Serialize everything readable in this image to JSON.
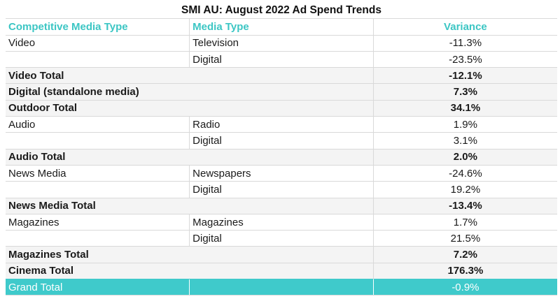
{
  "title": "SMI AU: August 2022 Ad Spend Trends",
  "headers": {
    "col1": "Competitive Media Type",
    "col2": "Media Type",
    "col3": "Variance"
  },
  "rows": [
    {
      "type": "detail",
      "col1": "Video",
      "col2": "Television",
      "col3": "-11.3%"
    },
    {
      "type": "detail",
      "col1": "",
      "col2": "Digital",
      "col3": "-23.5%"
    },
    {
      "type": "total",
      "col1": "Video Total",
      "col2": "",
      "col3": "-12.1%"
    },
    {
      "type": "total",
      "col1": "Digital (standalone media)",
      "col2": "",
      "col3": "7.3%"
    },
    {
      "type": "total",
      "col1": "Outdoor Total",
      "col2": "",
      "col3": "34.1%"
    },
    {
      "type": "detail",
      "col1": "Audio",
      "col2": "Radio",
      "col3": "1.9%"
    },
    {
      "type": "detail",
      "col1": "",
      "col2": "Digital",
      "col3": "3.1%"
    },
    {
      "type": "total",
      "col1": "Audio Total",
      "col2": "",
      "col3": "2.0%"
    },
    {
      "type": "detail",
      "col1": "News Media",
      "col2": "Newspapers",
      "col3": "-24.6%"
    },
    {
      "type": "detail",
      "col1": "",
      "col2": "Digital",
      "col3": "19.2%"
    },
    {
      "type": "total",
      "col1": "News Media Total",
      "col2": "",
      "col3": "-13.4%"
    },
    {
      "type": "detail",
      "col1": "Magazines",
      "col2": "Magazines",
      "col3": "1.7%"
    },
    {
      "type": "detail",
      "col1": "",
      "col2": "Digital",
      "col3": "21.5%"
    },
    {
      "type": "total",
      "col1": "Magazines Total",
      "col2": "",
      "col3": "7.2%"
    },
    {
      "type": "total",
      "col1": "Cinema Total",
      "col2": "",
      "col3": "176.3%"
    }
  ],
  "grand_total": {
    "col1": "Grand Total",
    "col2": "",
    "col3": "-0.9%"
  },
  "colors": {
    "accent": "#3fcacb",
    "header_text": "#3cc6c4",
    "total_bg": "#f4f4f4"
  }
}
